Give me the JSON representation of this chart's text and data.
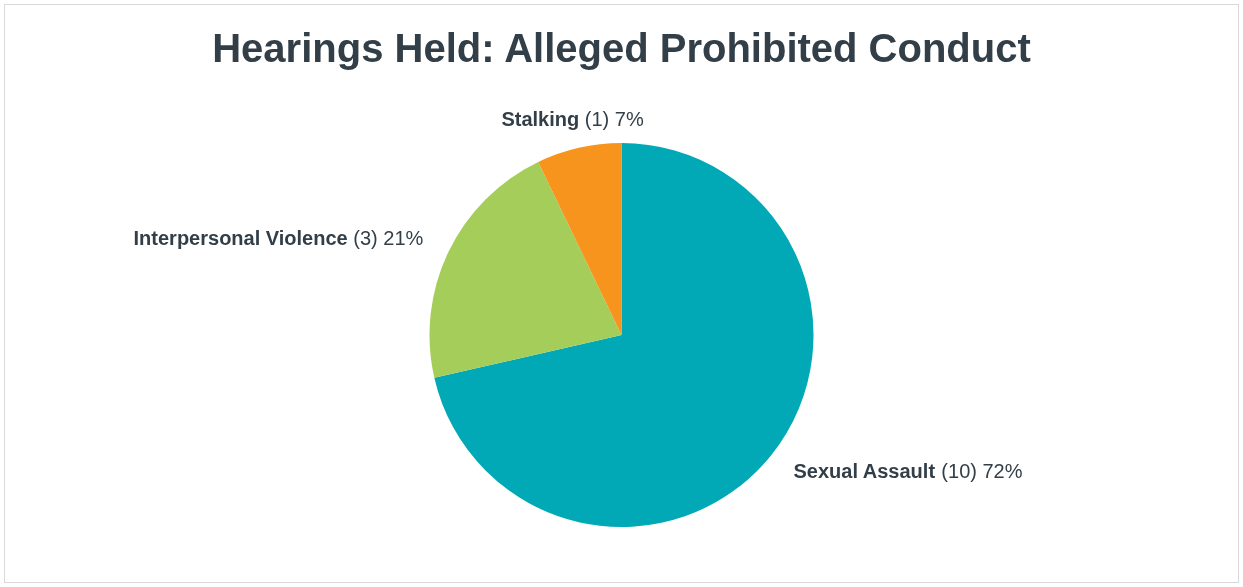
{
  "chart_data": {
    "type": "pie",
    "title": "Hearings Held: Alleged Prohibited Conduct",
    "categories": [
      "Sexual Assault",
      "Interpersonal Violence",
      "Stalking"
    ],
    "values": [
      10,
      3,
      1
    ],
    "value_labels": [
      "(10) 72%",
      "(3) 21%",
      "(1) 7%"
    ],
    "colors": [
      "#00a9b5",
      "#a5cd59",
      "#f7941d"
    ],
    "legend": false
  }
}
